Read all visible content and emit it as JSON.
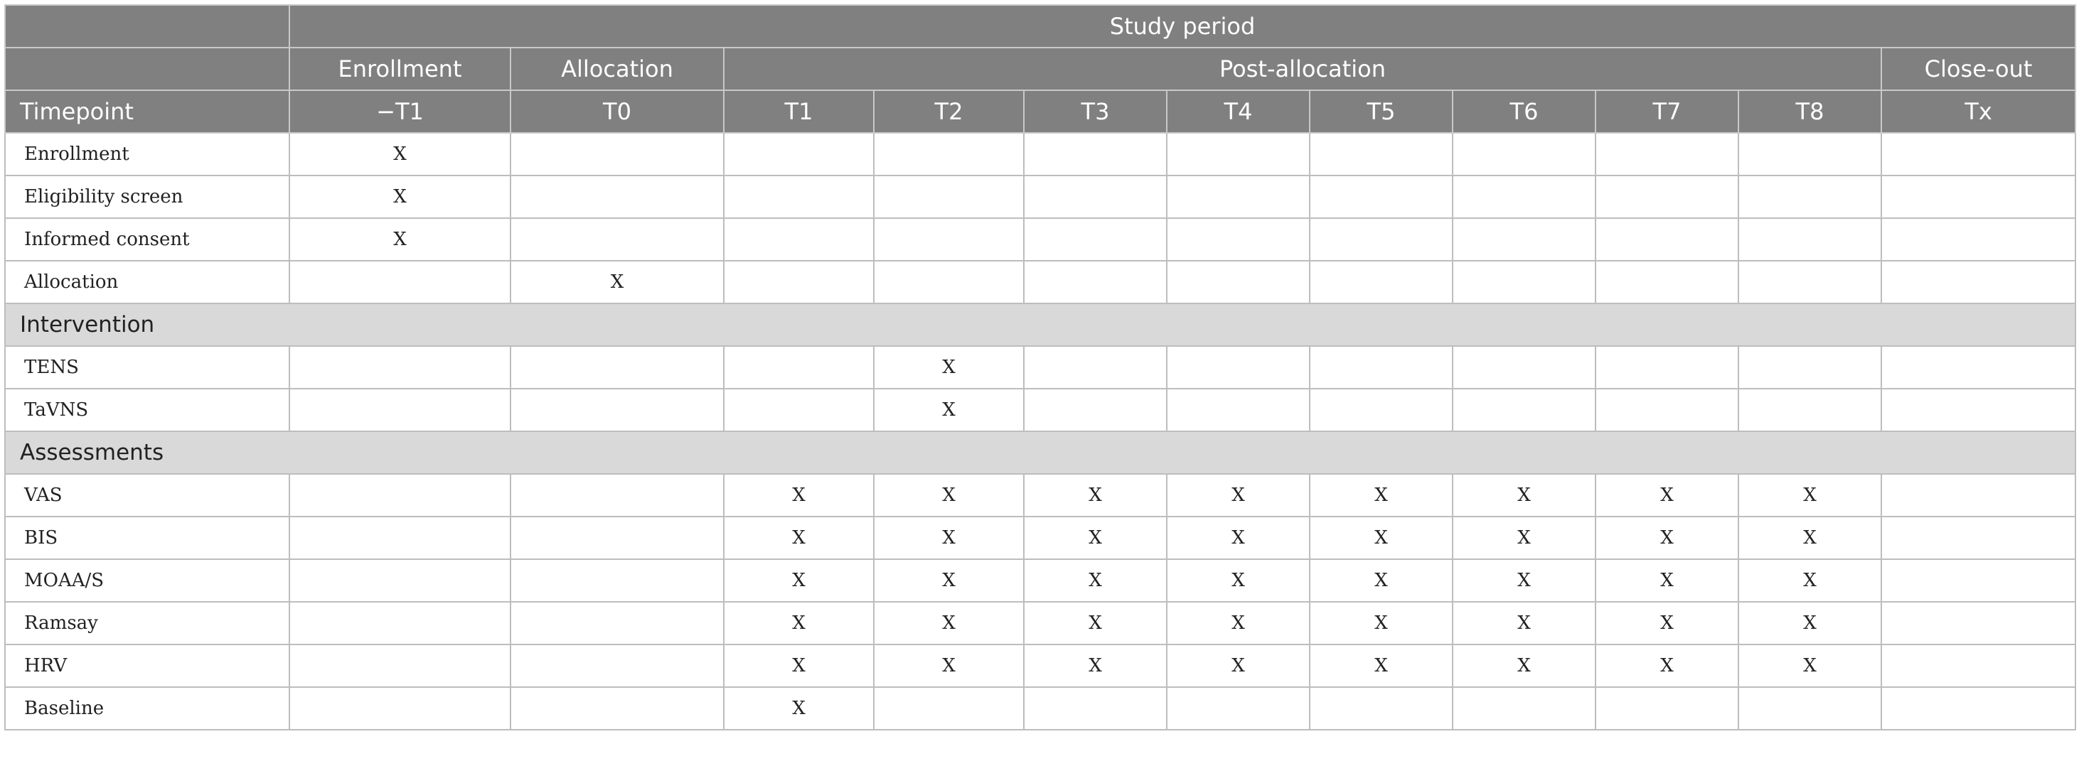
{
  "header": {
    "study_period": "Study period",
    "groups": {
      "enrollment": "Enrollment",
      "allocation": "Allocation",
      "post_allocation": "Post-allocation",
      "close_out": "Close-out"
    },
    "timepoint_label": "Timepoint",
    "timepoints": [
      "−T1",
      "T0",
      "T1",
      "T2",
      "T3",
      "T4",
      "T5",
      "T6",
      "T7",
      "T8",
      "Tx"
    ]
  },
  "rows": [
    {
      "label": "Enrollment",
      "cells": [
        "X",
        "",
        "",
        "",
        "",
        "",
        "",
        "",
        "",
        "",
        ""
      ]
    },
    {
      "label": "Eligibility screen",
      "cells": [
        "X",
        "",
        "",
        "",
        "",
        "",
        "",
        "",
        "",
        "",
        ""
      ]
    },
    {
      "label": "Informed consent",
      "cells": [
        "X",
        "",
        "",
        "",
        "",
        "",
        "",
        "",
        "",
        "",
        ""
      ]
    },
    {
      "label": "Allocation",
      "cells": [
        "",
        "X",
        "",
        "",
        "",
        "",
        "",
        "",
        "",
        "",
        ""
      ]
    },
    {
      "section": "Intervention"
    },
    {
      "label": "TENS",
      "cells": [
        "",
        "",
        "",
        "X",
        "",
        "",
        "",
        "",
        "",
        "",
        ""
      ]
    },
    {
      "label": "TaVNS",
      "cells": [
        "",
        "",
        "",
        "X",
        "",
        "",
        "",
        "",
        "",
        "",
        ""
      ]
    },
    {
      "section": "Assessments"
    },
    {
      "label": "VAS",
      "cells": [
        "",
        "",
        "X",
        "X",
        "X",
        "X",
        "X",
        "X",
        "X",
        "X",
        ""
      ]
    },
    {
      "label": "BIS",
      "cells": [
        "",
        "",
        "X",
        "X",
        "X",
        "X",
        "X",
        "X",
        "X",
        "X",
        ""
      ]
    },
    {
      "label": "MOAA/S",
      "cells": [
        "",
        "",
        "X",
        "X",
        "X",
        "X",
        "X",
        "X",
        "X",
        "X",
        ""
      ]
    },
    {
      "label": "Ramsay",
      "cells": [
        "",
        "",
        "X",
        "X",
        "X",
        "X",
        "X",
        "X",
        "X",
        "X",
        ""
      ]
    },
    {
      "label": "HRV",
      "cells": [
        "",
        "",
        "X",
        "X",
        "X",
        "X",
        "X",
        "X",
        "X",
        "X",
        ""
      ]
    },
    {
      "label": "Baseline",
      "cells": [
        "",
        "",
        "X",
        "",
        "",
        "",
        "",
        "",
        "",
        "",
        ""
      ]
    }
  ]
}
